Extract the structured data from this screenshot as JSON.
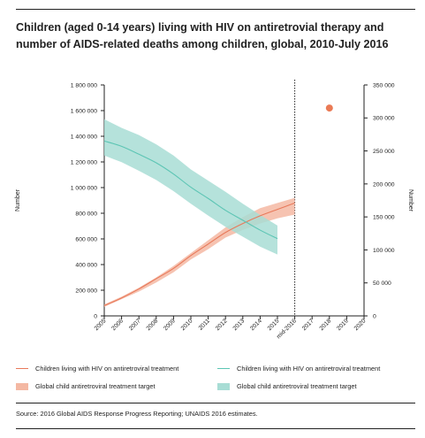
{
  "title": "Children (aged 0-14 years) living with HIV on antiretrovial therapy and number of AIDS-related deaths among children, global, 2010-July 2016",
  "source": "Source: 2016 Global AIDS Response Progress Reporting; UNAIDS 2016 estimates.",
  "colors": {
    "orange": "#e8795a",
    "orange_band": "#f4b8a3",
    "teal": "#5cc5b4",
    "teal_band": "#a8ddd5",
    "point": "#ea7a55"
  },
  "chart_data": {
    "type": "line",
    "x_categories": [
      "2005",
      "2006",
      "2007",
      "2008",
      "2009",
      "2010",
      "2011",
      "2012",
      "2013",
      "2014",
      "2015",
      "mid-2016",
      "2017",
      "2018",
      "2019",
      "2020"
    ],
    "ylabel": "Number",
    "y2label": "Number",
    "ylim": [
      0,
      1800000
    ],
    "y2lim": [
      0,
      350000
    ],
    "yticks": [
      "0",
      "200 000",
      "400 000",
      "600 000",
      "800 000",
      "1 000 000",
      "1 200 000",
      "1 400 000",
      "1 600 000",
      "1 800 000"
    ],
    "y2ticks": [
      "0",
      "50 000",
      "100 000",
      "150 000",
      "200 000",
      "250 000",
      "300 000",
      "350 000"
    ],
    "vertical_dashed_line_at": "mid-2016",
    "series": [
      {
        "name": "Children living with HIV on antiretroviral treatment",
        "axis": "left",
        "color": "orange",
        "x_index": [
          0,
          1,
          2,
          3,
          4,
          5,
          6,
          7,
          8,
          9,
          10,
          11
        ],
        "values": [
          80000,
          140000,
          210000,
          290000,
          370000,
          470000,
          560000,
          650000,
          720000,
          780000,
          830000,
          880000
        ],
        "band_lower": [
          70000,
          130000,
          190000,
          260000,
          340000,
          440000,
          520000,
          610000,
          670000,
          720000,
          760000,
          790000
        ],
        "band_upper": [
          90000,
          150000,
          220000,
          300000,
          390000,
          490000,
          590000,
          690000,
          770000,
          840000,
          880000,
          920000
        ]
      },
      {
        "name": "Children living with HIV on antiretroviral treatment",
        "axis": "right",
        "color": "teal",
        "x_index": [
          0,
          1,
          2,
          3,
          4,
          5,
          6,
          7,
          8,
          9,
          10
        ],
        "values": [
          265000,
          257000,
          245000,
          232000,
          215000,
          195000,
          178000,
          160000,
          145000,
          130000,
          117000
        ],
        "band_lower": [
          243000,
          233000,
          220000,
          206000,
          189000,
          170000,
          152000,
          135000,
          120000,
          105000,
          93000
        ],
        "band_upper": [
          298000,
          285000,
          274000,
          260000,
          243000,
          222000,
          205000,
          188000,
          170000,
          153000,
          137000
        ]
      }
    ],
    "points": [
      {
        "name": "Global child antiretroviral treatment target",
        "x_index": 13,
        "value": 1620000,
        "axis": "left",
        "color": "point"
      }
    ]
  },
  "legend": [
    {
      "label": "Children living with HIV on antiretroviral treatment",
      "kind": "line",
      "color": "orange"
    },
    {
      "label": "Children living with HIV on antiretroviral treatment",
      "kind": "line",
      "color": "teal"
    },
    {
      "label": "Global child antiretroviral treatment target",
      "kind": "band",
      "color": "orange_band"
    },
    {
      "label": "Global child antiretroviral treatment target",
      "kind": "band",
      "color": "teal_band"
    }
  ]
}
